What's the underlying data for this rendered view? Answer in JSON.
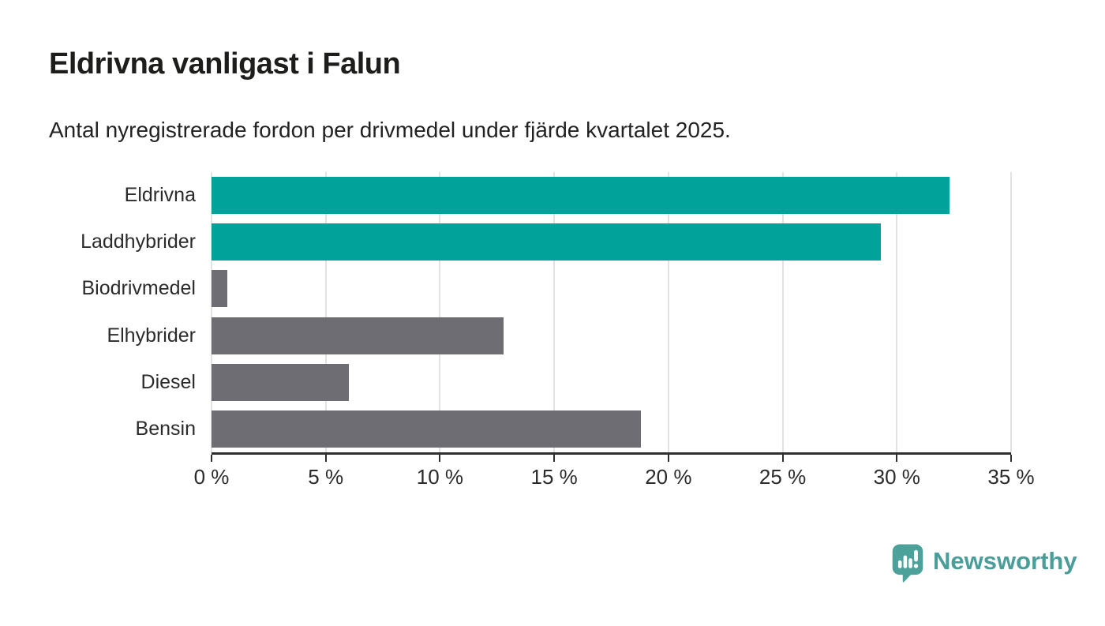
{
  "header": {
    "title": "Eldrivna vanligast i Falun",
    "subtitle": "Antal nyregistrerade fordon per drivmedel under fjärde kvartalet 2025."
  },
  "chart_data": {
    "type": "bar",
    "orientation": "horizontal",
    "title": "Eldrivna vanligast i Falun",
    "subtitle": "Antal nyregistrerade fordon per drivmedel under fjärde kvartalet 2025.",
    "categories": [
      "Eldrivna",
      "Laddhybrider",
      "Biodrivmedel",
      "Elhybrider",
      "Diesel",
      "Bensin"
    ],
    "values": [
      32.3,
      29.3,
      0.7,
      12.8,
      6.0,
      18.8
    ],
    "unit": "%",
    "bar_colors": [
      "#00a29a",
      "#00a29a",
      "#6e6d73",
      "#6e6d73",
      "#6e6d73",
      "#6e6d73"
    ],
    "xlabel": "",
    "ylabel": "",
    "xlim": [
      0,
      35
    ],
    "x_ticks": [
      0,
      5,
      10,
      15,
      20,
      25,
      30,
      35
    ],
    "x_tick_labels": [
      "0 %",
      "5 %",
      "10 %",
      "15 %",
      "20 %",
      "25 %",
      "30 %",
      "35 %"
    ],
    "grid": "vertical",
    "legend": "none"
  },
  "footer": {
    "brand": "Newsworthy"
  },
  "colors": {
    "accent_teal": "#00a29a",
    "bar_gray": "#6e6d73",
    "gridline": "#e2e2e2",
    "axis": "#2f2f2f",
    "logo_icon_teal": "#4ca29b",
    "logo_text_teal": "#4a9d98"
  }
}
